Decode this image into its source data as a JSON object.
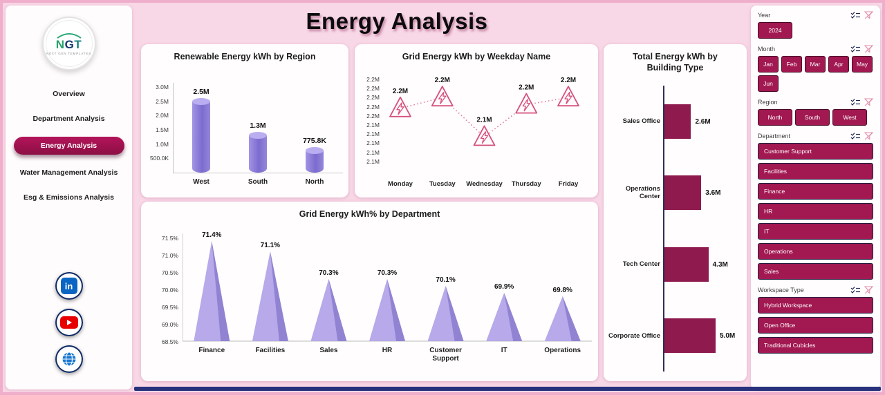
{
  "page": {
    "title": "Energy Analysis"
  },
  "sidebar": {
    "logo_text": "NGT",
    "logo_sub": "NEXT GEN TEMPLATES",
    "items": [
      {
        "label": "Overview",
        "active": false
      },
      {
        "label": "Department Analysis",
        "active": false
      },
      {
        "label": "Energy Analysis",
        "active": true
      },
      {
        "label": "Water Management Analysis",
        "active": false
      },
      {
        "label": "Esg & Emissions Analysis",
        "active": false
      }
    ],
    "social": [
      {
        "name": "linkedin"
      },
      {
        "name": "youtube"
      },
      {
        "name": "web"
      }
    ]
  },
  "filters": [
    {
      "label": "Year",
      "layout": "row wide",
      "options": [
        "2024"
      ]
    },
    {
      "label": "Month",
      "layout": "row",
      "options": [
        "Jan",
        "Feb",
        "Mar",
        "Apr",
        "May",
        "Jun"
      ]
    },
    {
      "label": "Region",
      "layout": "row wide",
      "options": [
        "North",
        "South",
        "West"
      ]
    },
    {
      "label": "Department",
      "layout": "stack",
      "options": [
        "Customer Support",
        "Facilities",
        "Finance",
        "HR",
        "IT",
        "Operations",
        "Sales"
      ]
    },
    {
      "label": "Workspace Type",
      "layout": "stack",
      "options": [
        "Hybrid Workspace",
        "Open Office",
        "Traditional Cubicles"
      ]
    }
  ],
  "colors": {
    "accent": "#A21851",
    "accent_dark": "#8E1A4E",
    "purple": "#8C7CD9",
    "purple_light": "#B7A9EA",
    "pink_line": "#D5517E",
    "navy": "#27317C"
  },
  "chart_data": [
    {
      "id": "renewable",
      "type": "bar",
      "title": "Renewable Energy kWh by Region",
      "categories": [
        "West",
        "South",
        "North"
      ],
      "values": [
        2500000,
        1300000,
        775800
      ],
      "value_labels": [
        "2.5M",
        "1.3M",
        "775.8K"
      ],
      "y_ticks": [
        "3.0M",
        "2.5M",
        "2.0M",
        "1.5M",
        "1.0M",
        "500.0K"
      ],
      "ylim": [
        0,
        3000000
      ]
    },
    {
      "id": "weekday",
      "type": "line",
      "title": "Grid Energy kWh by Weekday Name",
      "categories": [
        "Monday",
        "Tuesday",
        "Wednesday",
        "Thursday",
        "Friday"
      ],
      "values": [
        2.16,
        2.19,
        2.08,
        2.17,
        2.19
      ],
      "value_labels": [
        "2.2M",
        "2.2M",
        "2.1M",
        "2.2M",
        "2.2M"
      ],
      "y_ticks": [
        "2.2M",
        "2.2M",
        "2.2M",
        "2.2M",
        "2.2M",
        "2.1M",
        "2.1M",
        "2.1M",
        "2.1M",
        "2.1M"
      ],
      "ylim": [
        2.0,
        2.25
      ],
      "unit": "M"
    },
    {
      "id": "department",
      "type": "area",
      "title": "Grid Energy kWh% by Department",
      "categories": [
        "Finance",
        "Facilities",
        "Sales",
        "HR",
        "Customer Support",
        "IT",
        "Operations"
      ],
      "values": [
        71.4,
        71.1,
        70.3,
        70.3,
        70.1,
        69.9,
        69.8
      ],
      "value_labels": [
        "71.4%",
        "71.1%",
        "70.3%",
        "70.3%",
        "70.1%",
        "69.9%",
        "69.8%"
      ],
      "y_ticks": [
        "71.5%",
        "71.0%",
        "70.5%",
        "70.0%",
        "69.5%",
        "69.0%",
        "68.5%"
      ],
      "ylim": [
        68.5,
        71.5
      ]
    },
    {
      "id": "building",
      "type": "bar",
      "orientation": "horizontal",
      "title": "Total Energy kWh by Building Type",
      "categories": [
        "Sales Office",
        "Operations Center",
        "Tech Center",
        "Corporate Office"
      ],
      "values": [
        2.6,
        3.6,
        4.3,
        5.0
      ],
      "value_labels": [
        "2.6M",
        "3.6M",
        "4.3M",
        "5.0M"
      ],
      "xlim": [
        0,
        5.5
      ]
    }
  ]
}
